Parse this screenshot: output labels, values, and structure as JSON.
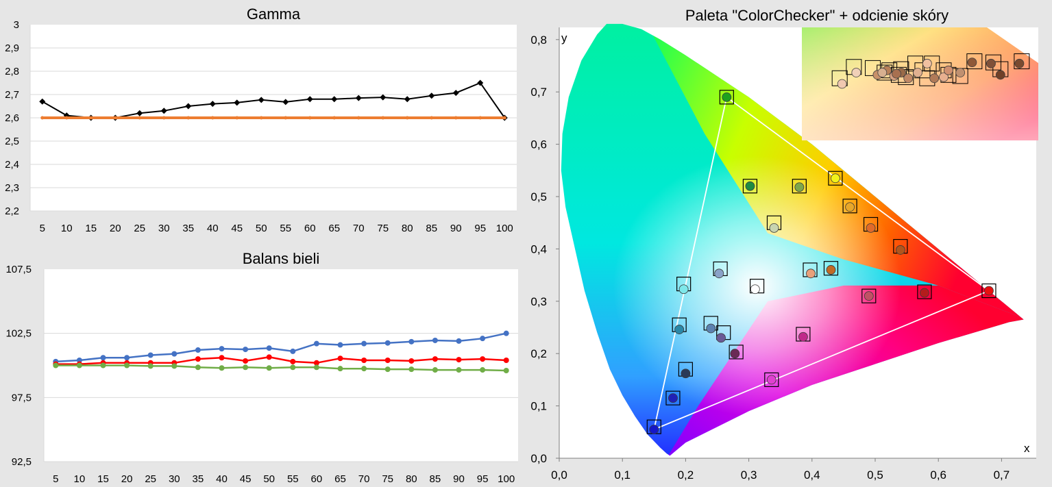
{
  "chart_data": [
    {
      "type": "line",
      "title": "Gamma",
      "xlabel": "",
      "ylabel": "",
      "categories": [
        "5",
        "10",
        "15",
        "20",
        "25",
        "30",
        "35",
        "40",
        "45",
        "50",
        "55",
        "60",
        "65",
        "70",
        "75",
        "80",
        "85",
        "90",
        "95",
        "100"
      ],
      "ylim": [
        2.2,
        3.0
      ],
      "yticks": [
        "2,2",
        "2,3",
        "2,4",
        "2,5",
        "2,6",
        "2,7",
        "2,8",
        "2,9",
        "3"
      ],
      "grid": true,
      "series": [
        {
          "color": "#000000",
          "values": [
            2.67,
            2.61,
            2.6,
            2.6,
            2.62,
            2.63,
            2.65,
            2.66,
            2.665,
            2.677,
            2.668,
            2.68,
            2.68,
            2.685,
            2.688,
            2.68,
            2.695,
            2.707,
            2.75,
            2.6
          ]
        },
        {
          "color": "#ed7d31",
          "values": [
            2.6,
            2.6,
            2.6,
            2.6,
            2.6,
            2.6,
            2.6,
            2.6,
            2.6,
            2.6,
            2.6,
            2.6,
            2.6,
            2.6,
            2.6,
            2.6,
            2.6,
            2.6,
            2.6,
            2.6
          ]
        }
      ]
    },
    {
      "type": "line",
      "title": "Balans bieli",
      "xlabel": "",
      "ylabel": "",
      "categories": [
        "5",
        "10",
        "15",
        "20",
        "25",
        "30",
        "35",
        "40",
        "45",
        "50",
        "55",
        "60",
        "65",
        "70",
        "75",
        "80",
        "85",
        "90",
        "95",
        "100"
      ],
      "ylim": [
        92.5,
        107.5
      ],
      "yticks": [
        "92,5",
        "97,5",
        "102,5",
        "107,5"
      ],
      "grid": true,
      "series": [
        {
          "color": "#4472c4",
          "values": [
            100.3,
            100.4,
            100.6,
            100.6,
            100.8,
            100.9,
            101.2,
            101.3,
            101.25,
            101.35,
            101.1,
            101.7,
            101.6,
            101.7,
            101.75,
            101.85,
            101.95,
            101.9,
            102.1,
            102.5
          ]
        },
        {
          "color": "#ff0000",
          "values": [
            100.1,
            100.1,
            100.2,
            100.2,
            100.2,
            100.2,
            100.5,
            100.6,
            100.35,
            100.65,
            100.3,
            100.2,
            100.55,
            100.4,
            100.4,
            100.35,
            100.5,
            100.45,
            100.5,
            100.4
          ]
        },
        {
          "color": "#70ad47",
          "values": [
            100.0,
            100.0,
            100.0,
            100.0,
            99.95,
            99.95,
            99.85,
            99.8,
            99.85,
            99.8,
            99.85,
            99.85,
            99.75,
            99.75,
            99.7,
            99.7,
            99.65,
            99.65,
            99.65,
            99.6
          ]
        }
      ]
    },
    {
      "type": "scatter",
      "title": "Paleta \"ColorChecker\" + odcienie skóry",
      "xlabel": "x",
      "ylabel": "y",
      "xlim": [
        0,
        0.75
      ],
      "ylim": [
        0,
        0.83
      ],
      "xticks": [
        0,
        0.1,
        0.2,
        0.3,
        0.4,
        0.5,
        0.6,
        0.7
      ],
      "yticks": [
        0,
        0.1,
        0.2,
        0.3,
        0.4,
        0.5,
        0.6,
        0.7,
        0.8
      ],
      "xtick_labels": [
        "0,0",
        "0,1",
        "0,2",
        "0,3",
        "0,4",
        "0,5",
        "0,6",
        "0,7"
      ],
      "ytick_labels": [
        "0,0",
        "0,1",
        "0,2",
        "0,3",
        "0,4",
        "0,5",
        "0,6",
        "0,7",
        "0,8"
      ],
      "triangle_measured": [
        [
          0.265,
          0.69
        ],
        [
          0.68,
          0.32
        ],
        [
          0.15,
          0.055
        ]
      ],
      "triangle_reference": [
        [
          0.265,
          0.69
        ],
        [
          0.68,
          0.32
        ],
        [
          0.15,
          0.06
        ]
      ],
      "white_point": [
        0.313,
        0.329
      ],
      "targets": [
        [
          0.265,
          0.69
        ],
        [
          0.68,
          0.32
        ],
        [
          0.15,
          0.06
        ],
        [
          0.197,
          0.333
        ],
        [
          0.336,
          0.15
        ],
        [
          0.437,
          0.535
        ],
        [
          0.302,
          0.52
        ],
        [
          0.38,
          0.52
        ],
        [
          0.46,
          0.482
        ],
        [
          0.34,
          0.45
        ],
        [
          0.493,
          0.447
        ],
        [
          0.54,
          0.405
        ],
        [
          0.255,
          0.362
        ],
        [
          0.397,
          0.36
        ],
        [
          0.43,
          0.363
        ],
        [
          0.313,
          0.329
        ],
        [
          0.49,
          0.31
        ],
        [
          0.578,
          0.318
        ],
        [
          0.19,
          0.255
        ],
        [
          0.24,
          0.258
        ],
        [
          0.26,
          0.24
        ],
        [
          0.28,
          0.203
        ],
        [
          0.386,
          0.237
        ],
        [
          0.2,
          0.17
        ],
        [
          0.18,
          0.115
        ]
      ],
      "points": [
        {
          "x": 0.265,
          "y": 0.69,
          "c": "#1ea21e"
        },
        {
          "x": 0.68,
          "y": 0.32,
          "c": "#e81010"
        },
        {
          "x": 0.15,
          "y": 0.055,
          "c": "#1616c8"
        },
        {
          "x": 0.197,
          "y": 0.323,
          "c": "#7ee8ea"
        },
        {
          "x": 0.336,
          "y": 0.15,
          "c": "#e040d0"
        },
        {
          "x": 0.437,
          "y": 0.535,
          "c": "#f2f21a"
        },
        {
          "x": 0.302,
          "y": 0.52,
          "c": "#1e8c42"
        },
        {
          "x": 0.38,
          "y": 0.518,
          "c": "#7ea84a"
        },
        {
          "x": 0.46,
          "y": 0.48,
          "c": "#e8a82a"
        },
        {
          "x": 0.34,
          "y": 0.44,
          "c": "#c8d4b0"
        },
        {
          "x": 0.493,
          "y": 0.44,
          "c": "#e06a2a"
        },
        {
          "x": 0.54,
          "y": 0.398,
          "c": "#b0561e"
        },
        {
          "x": 0.253,
          "y": 0.353,
          "c": "#8aa2c8"
        },
        {
          "x": 0.398,
          "y": 0.353,
          "c": "#e8a07a"
        },
        {
          "x": 0.43,
          "y": 0.36,
          "c": "#c06a26"
        },
        {
          "x": 0.31,
          "y": 0.323,
          "c": "#ffffff"
        },
        {
          "x": 0.49,
          "y": 0.31,
          "c": "#c05264"
        },
        {
          "x": 0.578,
          "y": 0.316,
          "c": "#b41c1c"
        },
        {
          "x": 0.19,
          "y": 0.246,
          "c": "#2a88a8"
        },
        {
          "x": 0.24,
          "y": 0.248,
          "c": "#5c82b0"
        },
        {
          "x": 0.256,
          "y": 0.23,
          "c": "#6a5a96"
        },
        {
          "x": 0.278,
          "y": 0.2,
          "c": "#6a2a56"
        },
        {
          "x": 0.386,
          "y": 0.232,
          "c": "#c02a8a"
        },
        {
          "x": 0.2,
          "y": 0.162,
          "c": "#2a3a58"
        },
        {
          "x": 0.18,
          "y": 0.115,
          "c": "#2020b8"
        }
      ],
      "inset": {
        "targets": [
          [
            0.16,
            0.55
          ],
          [
            0.22,
            0.65
          ],
          [
            0.3,
            0.64
          ],
          [
            0.37,
            0.62
          ],
          [
            0.41,
            0.58
          ],
          [
            0.44,
            0.56
          ],
          [
            0.51,
            0.62
          ],
          [
            0.55,
            0.68
          ],
          [
            0.62,
            0.58
          ],
          [
            0.67,
            0.57
          ],
          [
            0.73,
            0.7
          ],
          [
            0.81,
            0.69
          ],
          [
            0.84,
            0.63
          ],
          [
            0.93,
            0.7
          ],
          [
            0.48,
            0.68
          ],
          [
            0.53,
            0.55
          ],
          [
            0.6,
            0.62
          ],
          [
            0.35,
            0.6
          ],
          [
            0.42,
            0.63
          ]
        ],
        "points": [
          {
            "x": 0.17,
            "y": 0.5,
            "c": "#f0c8b0"
          },
          {
            "x": 0.23,
            "y": 0.6,
            "c": "#f0d0b8"
          },
          {
            "x": 0.32,
            "y": 0.58,
            "c": "#c8906a"
          },
          {
            "x": 0.36,
            "y": 0.62,
            "c": "#b88058"
          },
          {
            "x": 0.39,
            "y": 0.57,
            "c": "#d8a080"
          },
          {
            "x": 0.42,
            "y": 0.6,
            "c": "#9a6a48"
          },
          {
            "x": 0.45,
            "y": 0.55,
            "c": "#c08866"
          },
          {
            "x": 0.49,
            "y": 0.6,
            "c": "#e0b090"
          },
          {
            "x": 0.53,
            "y": 0.68,
            "c": "#f0c0a0"
          },
          {
            "x": 0.56,
            "y": 0.55,
            "c": "#b07a58"
          },
          {
            "x": 0.6,
            "y": 0.56,
            "c": "#e8b090"
          },
          {
            "x": 0.62,
            "y": 0.62,
            "c": "#d09070"
          },
          {
            "x": 0.67,
            "y": 0.6,
            "c": "#c09070"
          },
          {
            "x": 0.72,
            "y": 0.69,
            "c": "#905838"
          },
          {
            "x": 0.8,
            "y": 0.68,
            "c": "#805038"
          },
          {
            "x": 0.84,
            "y": 0.58,
            "c": "#704028"
          },
          {
            "x": 0.92,
            "y": 0.68,
            "c": "#7a4a30"
          },
          {
            "x": 0.34,
            "y": 0.6,
            "c": "#d8b090"
          },
          {
            "x": 0.4,
            "y": 0.59,
            "c": "#a87050"
          }
        ]
      }
    }
  ]
}
